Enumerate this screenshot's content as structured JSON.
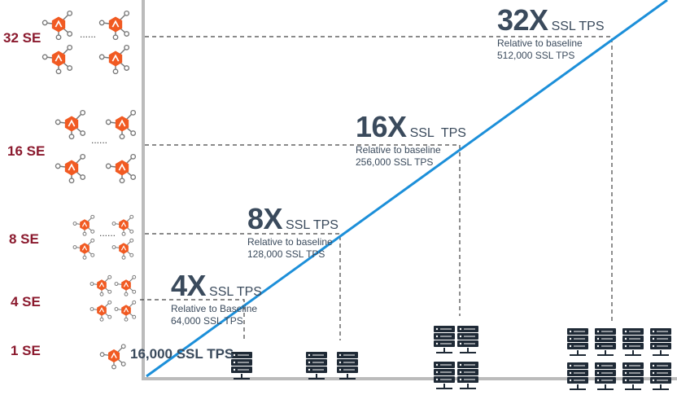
{
  "colors": {
    "label": "#8B1A2E",
    "trend_line": "#1C8FD9",
    "node": "#F15A22",
    "server": "#1F2A36",
    "axis": "#BBBBBB",
    "guide": "#444444",
    "text": "#3A4A5C"
  },
  "rows": [
    {
      "label": "32 SE",
      "multiplier": "32X",
      "unit": "SSL TPS",
      "note1": "Relative to baseline",
      "note2": "512,000 SSL TPS"
    },
    {
      "label": "16 SE",
      "multiplier": "16X",
      "unit": "SSL  TPS",
      "note1": "Relative to baseline",
      "note2": "256,000 SSL TPS"
    },
    {
      "label": "8 SE",
      "multiplier": "8X",
      "unit": "SSL TPS",
      "note1": "Relative to baseline",
      "note2": "128,000 SSL TPS"
    },
    {
      "label": "4 SE",
      "multiplier": "4X",
      "unit": "SSL TPS",
      "note1": "Relative to Baseline",
      "note2": "64,000 SSL TPS"
    },
    {
      "label": "1 SE"
    }
  ],
  "baseline_text": "16,000 SSL TPS",
  "ellipsis": "......",
  "icons": {
    "node": "service-engine-icon",
    "server": "server-rack-icon"
  }
}
